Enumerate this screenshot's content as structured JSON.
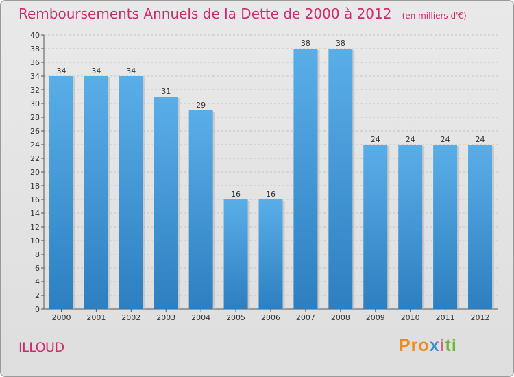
{
  "title": "Remboursements Annuels de la Dette de 2000 à 2012",
  "unit": "(en milliers d'€)",
  "commune": "ILLOUD",
  "logo": {
    "p1": "Pro",
    "p2": "x",
    "p3": "i",
    "p4": "ti"
  },
  "colors": {
    "bar_top": "#5aaee8",
    "bar_bottom": "#2d7fc0",
    "title": "#cf2a6c"
  },
  "chart_data": {
    "type": "bar",
    "categories": [
      "2000",
      "2001",
      "2002",
      "2003",
      "2004",
      "2005",
      "2006",
      "2007",
      "2008",
      "2009",
      "2010",
      "2011",
      "2012"
    ],
    "values": [
      34,
      34,
      34,
      31,
      29,
      16,
      16,
      38,
      38,
      24,
      24,
      24,
      24
    ],
    "ylim": [
      0,
      40
    ],
    "yticks": [
      0,
      2,
      4,
      6,
      8,
      10,
      12,
      14,
      16,
      18,
      20,
      22,
      24,
      26,
      28,
      30,
      32,
      34,
      36,
      38,
      40
    ],
    "grid": true
  }
}
